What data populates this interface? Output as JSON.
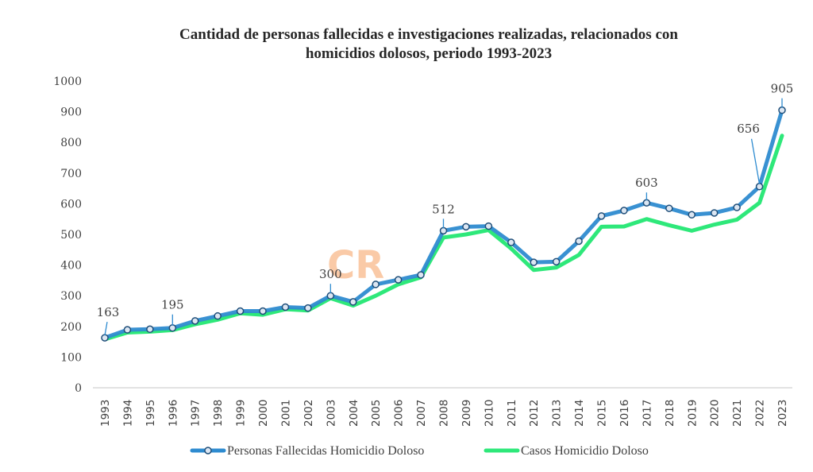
{
  "chart_data": {
    "type": "line",
    "title_lines": [
      "Cantidad de personas fallecidas e investigaciones realizadas, relacionados con",
      "homicidios dolosos, periodo 1993-2023"
    ],
    "xlabel": "",
    "ylabel": "",
    "ylim": [
      0,
      1000
    ],
    "yticks": [
      "0",
      "100",
      "200",
      "300",
      "400",
      "500",
      "600",
      "700",
      "800",
      "900",
      "1000"
    ],
    "grid": false,
    "legend_position": "bottom",
    "categories": [
      "1993",
      "1994",
      "1995",
      "1996",
      "1997",
      "1998",
      "1999",
      "2000",
      "2001",
      "2002",
      "2003",
      "2004",
      "2005",
      "2006",
      "2007",
      "2008",
      "2009",
      "2010",
      "2011",
      "2012",
      "2013",
      "2014",
      "2015",
      "2016",
      "2017",
      "2018",
      "2019",
      "2020",
      "2021",
      "2022",
      "2023"
    ],
    "series": [
      {
        "name": "Personas Fallecidas Homicidio Doloso",
        "color": "#2E8BD0",
        "marker_fill": "#DCE6F2",
        "marker_stroke": "#1F4E79",
        "values": [
          163,
          189,
          191,
          195,
          218,
          234,
          250,
          250,
          263,
          260,
          300,
          280,
          337,
          352,
          368,
          512,
          525,
          527,
          474,
          409,
          411,
          478,
          560,
          578,
          603,
          585,
          564,
          570,
          588,
          656,
          905
        ]
      },
      {
        "name": "Casos Homicidio Doloso",
        "color": "#2EE87A",
        "values": [
          158,
          180,
          183,
          188,
          207,
          222,
          243,
          238,
          256,
          252,
          292,
          268,
          300,
          337,
          360,
          490,
          500,
          514,
          454,
          384,
          392,
          433,
          525,
          526,
          550,
          530,
          512,
          532,
          548,
          603,
          822
        ]
      }
    ],
    "annotations": [
      {
        "series": 0,
        "x": "1993",
        "label": "163"
      },
      {
        "series": 0,
        "x": "1996",
        "label": "195"
      },
      {
        "series": 0,
        "x": "2003",
        "label": "300"
      },
      {
        "series": 0,
        "x": "2008",
        "label": "512"
      },
      {
        "series": 0,
        "x": "2017",
        "label": "603"
      },
      {
        "series": 0,
        "x": "2022",
        "label": "656"
      },
      {
        "series": 0,
        "x": "2023",
        "label": "905"
      }
    ]
  },
  "watermark": {
    "text": "CR",
    "color": "#F9B98A"
  },
  "colors": {
    "axis": "#D9D9D9",
    "text": "#404040"
  }
}
